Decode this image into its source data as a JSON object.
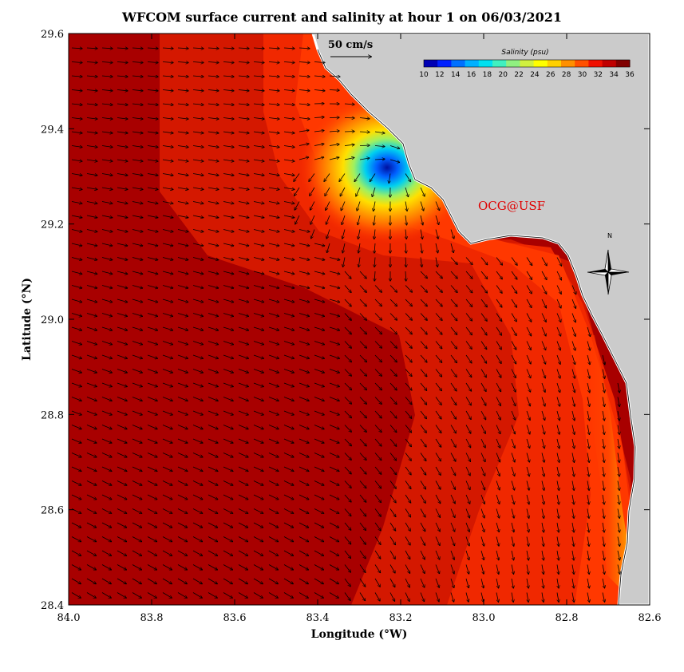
{
  "title": "WFCOM surface current and salinity at hour 1 on 06/03/2021",
  "x_axis": {
    "label": "Longitude (°W)",
    "ticks": [
      "84.0",
      "83.8",
      "83.6",
      "83.4",
      "83.2",
      "83.0",
      "82.8",
      "82.6"
    ]
  },
  "y_axis": {
    "label": "Latitude (°N)",
    "ticks": [
      "29.6",
      "29.4",
      "29.2",
      "29.0",
      "28.8",
      "28.6",
      "28.4"
    ]
  },
  "reference_vector": {
    "label": "50 cm/s"
  },
  "colorbar": {
    "title": "Salinity (psu)",
    "ticks": [
      "10",
      "12",
      "14",
      "16",
      "18",
      "20",
      "22",
      "24",
      "26",
      "28",
      "30",
      "32",
      "34",
      "36"
    ],
    "colors": [
      "#0000b4",
      "#0020ff",
      "#0070ff",
      "#00b0ff",
      "#00e0f0",
      "#40f0c0",
      "#90f080",
      "#d0f040",
      "#ffff00",
      "#ffd000",
      "#ff9000",
      "#ff5000",
      "#f01000",
      "#c00000",
      "#800000"
    ]
  },
  "credit": "OCG@USF",
  "compass": {
    "label": "N"
  },
  "colors": {
    "land": "#cbcbcb",
    "coast": "#ffffff",
    "ocean_high": "#b00000",
    "ocean_mid": "#e02000",
    "ocean_low": "#ff2a00"
  },
  "chart_data": {
    "type": "map",
    "xlim": [
      84.0,
      82.6
    ],
    "ylim": [
      28.4,
      29.6
    ],
    "lowest_salinity_center": [
      83.18,
      29.33
    ]
  }
}
